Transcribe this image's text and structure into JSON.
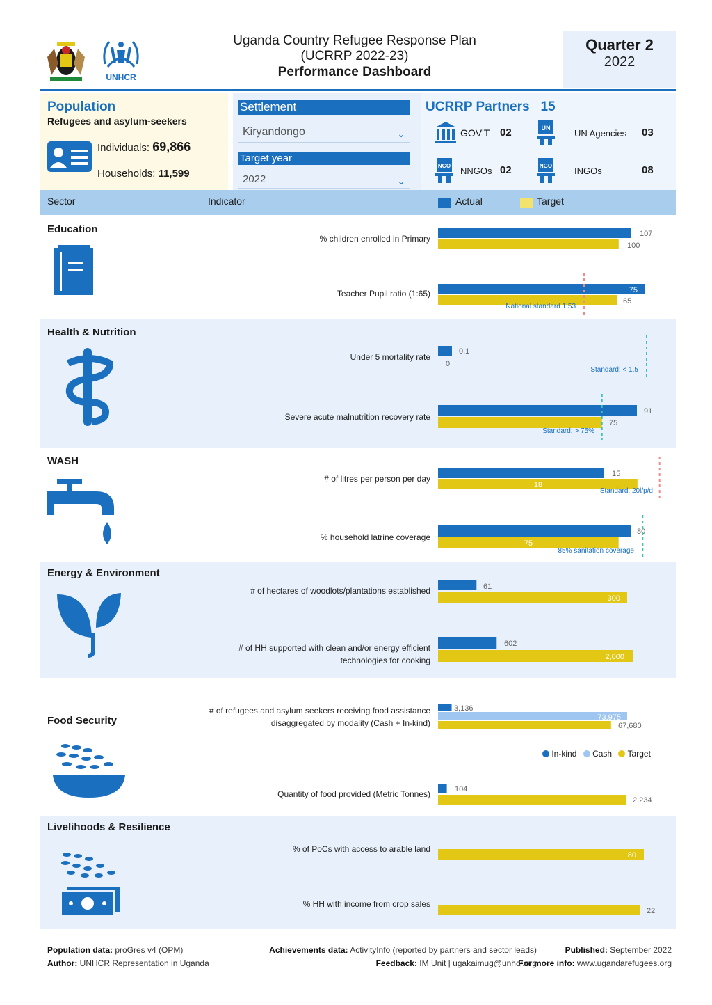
{
  "header": {
    "title_line1": "Uganda Country Refugee Response Plan",
    "title_line2": "(UCRRP 2022-23)",
    "title_line3": "Performance Dashboard",
    "quarter": "Quarter 2",
    "year": "2022",
    "unhcr_label": "UNHCR"
  },
  "population": {
    "title": "Population",
    "subtitle": "Refugees and asylum-seekers",
    "individuals_label": "Individuals: ",
    "individuals": "69,866",
    "households_label": "Households: ",
    "households": "11,599"
  },
  "filters": {
    "settlement_label": "Settlement",
    "settlement_value": "Kiryandongo",
    "year_label": "Target year",
    "year_value": "2022"
  },
  "partners": {
    "title": "UCRRP Partners",
    "total": "15",
    "govt_label": "GOV'T",
    "govt": "02",
    "un_label": "UN Agencies",
    "un": "03",
    "nngo_label": "NNGOs",
    "nngo": "02",
    "ingo_label": "INGOs",
    "ingo": "08"
  },
  "table_header": {
    "sector": "Sector",
    "indicator": "Indicator",
    "actual": "Actual",
    "target": "Target"
  },
  "colors": {
    "actual": "#1a6fbf",
    "target": "#e2c714",
    "cash": "#9ec6f0",
    "band": "#e8f1fb"
  },
  "chart_data": [
    {
      "sector": "Education",
      "type": "bar",
      "indicator": "% children enrolled in Primary",
      "actual": 107,
      "target": 100
    },
    {
      "sector": "Education",
      "type": "bar",
      "indicator": "Teacher Pupil ratio (1:65)",
      "actual": 75,
      "target": 65,
      "reference": {
        "label": "National standard 1:53",
        "value": 53
      }
    },
    {
      "sector": "Health & Nutrition",
      "type": "bar",
      "indicator": "Under 5 mortality rate",
      "actual": 0.1,
      "target": 0,
      "reference": {
        "label": "Standard: < 1.5",
        "value": 1.5
      }
    },
    {
      "sector": "Health & Nutrition",
      "type": "bar",
      "indicator": "Severe acute malnutrition recovery rate",
      "actual": 91,
      "target": 75,
      "reference": {
        "label": "Standard: > 75%",
        "value": 75
      }
    },
    {
      "sector": "WASH",
      "type": "bar",
      "indicator": "# of litres per person per day",
      "actual": 15,
      "target": 18,
      "reference": {
        "label": "Standard: 20l/p/d",
        "value": 20
      }
    },
    {
      "sector": "WASH",
      "type": "bar",
      "indicator": "% household latrine coverage",
      "actual": 80,
      "target": 75,
      "reference": {
        "label": "85% sanitation coverage",
        "value": 85
      }
    },
    {
      "sector": "Energy & Environment",
      "type": "bar",
      "indicator": "# of hectares of woodlots/plantations established",
      "actual": 61,
      "target": 300
    },
    {
      "sector": "Energy & Environment",
      "type": "bar",
      "indicator": "# of HH supported with clean and/or energy efficient technologies for cooking",
      "actual": 602,
      "target": 2000
    },
    {
      "sector": "Food Security",
      "type": "bar",
      "indicator": "# of refugees and asylum seekers receiving food assistance disaggregated by modality (Cash + In-kind)",
      "series": [
        {
          "name": "In-kind",
          "value": 3136
        },
        {
          "name": "Cash",
          "value": 73975
        },
        {
          "name": "Target",
          "value": 67680
        }
      ]
    },
    {
      "sector": "Food Security",
      "type": "bar",
      "indicator": "Quantity of food provided (Metric Tonnes)",
      "actual": 104,
      "target": 2234
    },
    {
      "sector": "Livelihoods & Resilience",
      "type": "bar",
      "indicator": "% of PoCs with access to arable land",
      "target": 80
    },
    {
      "sector": "Livelihoods & Resilience",
      "type": "bar",
      "indicator": "% HH with income from crop sales",
      "target": 22
    }
  ],
  "labels": {
    "edu_1_actual": "107",
    "edu_1_target": "100",
    "edu_2_actual": "75",
    "edu_2_target": "65",
    "edu_2_ref": "National standard 1:53",
    "hn_1_actual": "0.1",
    "hn_1_target": "0",
    "hn_1_ref": "Standard: < 1.5",
    "hn_2_actual": "91",
    "hn_2_target": "75",
    "hn_2_ref": "Standard: > 75%",
    "wash_1_actual": "15",
    "wash_1_target": "18",
    "wash_1_ref": "Standard: 20l/p/d",
    "wash_2_actual": "80",
    "wash_2_target": "75",
    "wash_2_ref": "85% sanitation coverage",
    "ee_1_actual": "61",
    "ee_1_target": "300",
    "ee_2_actual": "602",
    "ee_2_target": "2,000",
    "fs_1_inkind": "3,136",
    "fs_1_cash": "73,975",
    "fs_1_target": "67,680",
    "fs_2_actual": "104",
    "fs_2_target": "2,234",
    "lr_1_target": "80",
    "lr_2_target": "22"
  },
  "sectors": {
    "education": "Education",
    "health": "Health & Nutrition",
    "wash": "WASH",
    "energy": "Energy & Environment",
    "food": "Food Security",
    "livelihoods": "Livelihoods & Resilience"
  },
  "indicators": {
    "edu_1": "% children enrolled in Primary",
    "edu_2": "Teacher Pupil ratio (1:65)",
    "hn_1": "Under 5 mortality rate",
    "hn_2": "Severe acute malnutrition recovery rate",
    "wash_1": "# of litres per person per day",
    "wash_2": "% household latrine coverage",
    "ee_1": "# of hectares of woodlots/plantations established",
    "ee_2a": "# of HH supported with clean and/or energy efficient",
    "ee_2b": "technologies for cooking",
    "fs_1a": "# of refugees and asylum seekers receiving food assistance",
    "fs_1b": "disaggregated by modality (Cash + In-kind)",
    "fs_2": "Quantity of food provided (Metric Tonnes)",
    "lr_1": "% of PoCs with access to arable land",
    "lr_2": "% HH with income from crop sales"
  },
  "fs_legend": {
    "inkind": "In-kind",
    "cash": "Cash",
    "target": "Target"
  },
  "footer": {
    "pop_label": "Population data:",
    "pop_value": " proGres v4 (OPM)",
    "author_label": "Author:",
    "author_value": " UNHCR Representation in Uganda",
    "ach_label": "Achievements data:",
    "ach_value": " ActivityInfo (reported by partners and sector leads)",
    "fb_label": "Feedback:",
    "fb_value": " IM Unit | ugakaimug@unhcr.org",
    "pub_label": "Published:",
    "pub_value": " September 2022",
    "info_label": "For more info:",
    "info_value": " www.ugandarefugees.org"
  }
}
